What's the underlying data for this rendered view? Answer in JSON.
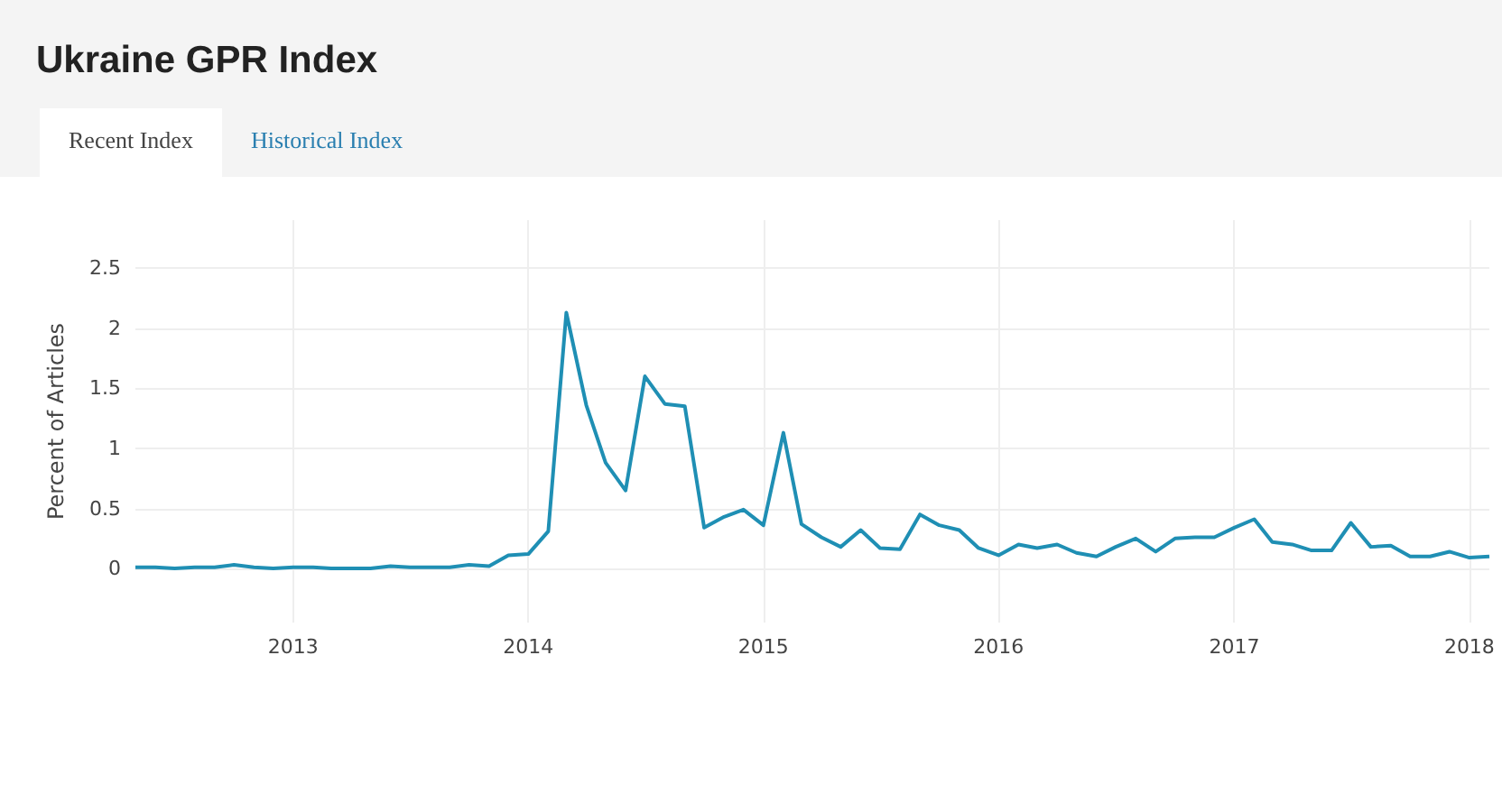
{
  "chart_data": {
    "type": "line",
    "title": "Ukraine GPR Index",
    "ylabel": "Percent of Articles",
    "annotations": [
      "Recent Index",
      "Historical Index"
    ],
    "x": [
      "2012-05-01",
      "2012-06-01",
      "2012-07-01",
      "2012-08-01",
      "2012-09-01",
      "2012-10-01",
      "2012-11-01",
      "2012-12-01",
      "2013-01-01",
      "2013-02-01",
      "2013-03-01",
      "2013-04-01",
      "2013-05-01",
      "2013-06-01",
      "2013-07-01",
      "2013-08-01",
      "2013-09-01",
      "2013-10-01",
      "2013-11-01",
      "2013-12-01",
      "2014-01-01",
      "2014-02-01",
      "2014-03-01",
      "2014-04-01",
      "2014-05-01",
      "2014-06-01",
      "2014-07-01",
      "2014-08-01",
      "2014-09-01",
      "2014-10-01",
      "2014-11-01",
      "2014-12-01",
      "2015-01-01",
      "2015-02-01",
      "2015-03-01",
      "2015-04-01",
      "2015-05-01",
      "2015-06-01",
      "2015-07-01",
      "2015-08-01",
      "2015-09-01",
      "2015-10-01",
      "2015-11-01",
      "2015-12-01",
      "2016-01-01",
      "2016-02-01",
      "2016-03-01",
      "2016-04-01",
      "2016-05-01",
      "2016-06-01",
      "2016-07-01",
      "2016-08-01",
      "2016-09-01",
      "2016-10-01",
      "2016-11-01",
      "2016-12-01",
      "2017-01-01",
      "2017-02-01",
      "2017-03-01",
      "2017-04-01",
      "2017-05-01",
      "2017-06-01",
      "2017-07-01",
      "2017-08-01",
      "2017-09-01",
      "2017-10-01",
      "2017-11-01",
      "2017-12-01",
      "2018-01-01",
      "2018-02-01"
    ],
    "series": [
      {
        "color": "#1f8fb4",
        "values": [
          0.01,
          0.01,
          0.0,
          0.01,
          0.01,
          0.03,
          0.01,
          0.0,
          0.01,
          0.01,
          0.0,
          0.0,
          0.0,
          0.02,
          0.01,
          0.01,
          0.01,
          0.03,
          0.02,
          0.11,
          0.12,
          0.31,
          2.13,
          1.36,
          0.88,
          0.65,
          1.6,
          1.37,
          1.35,
          0.34,
          0.43,
          0.49,
          0.36,
          1.13,
          0.37,
          0.26,
          0.18,
          0.32,
          0.17,
          0.16,
          0.45,
          0.36,
          0.32,
          0.17,
          0.11,
          0.2,
          0.17,
          0.2,
          0.13,
          0.1,
          0.18,
          0.25,
          0.14,
          0.25,
          0.26,
          0.26,
          0.34,
          0.41,
          0.22,
          0.2,
          0.15,
          0.15,
          0.38,
          0.18,
          0.19,
          0.1,
          0.1,
          0.14,
          0.09,
          0.1
        ]
      }
    ],
    "xlim": [
      "2012-05-01",
      "2018-02-01"
    ],
    "xticks": [
      "2013",
      "2014",
      "2015",
      "2016",
      "2017",
      "2018"
    ],
    "ylim": [
      -0.45,
      2.9
    ],
    "yticks": [
      0,
      0.5,
      1,
      1.5,
      2,
      2.5
    ],
    "grid": true,
    "marker": "none",
    "line_style": "solid"
  }
}
